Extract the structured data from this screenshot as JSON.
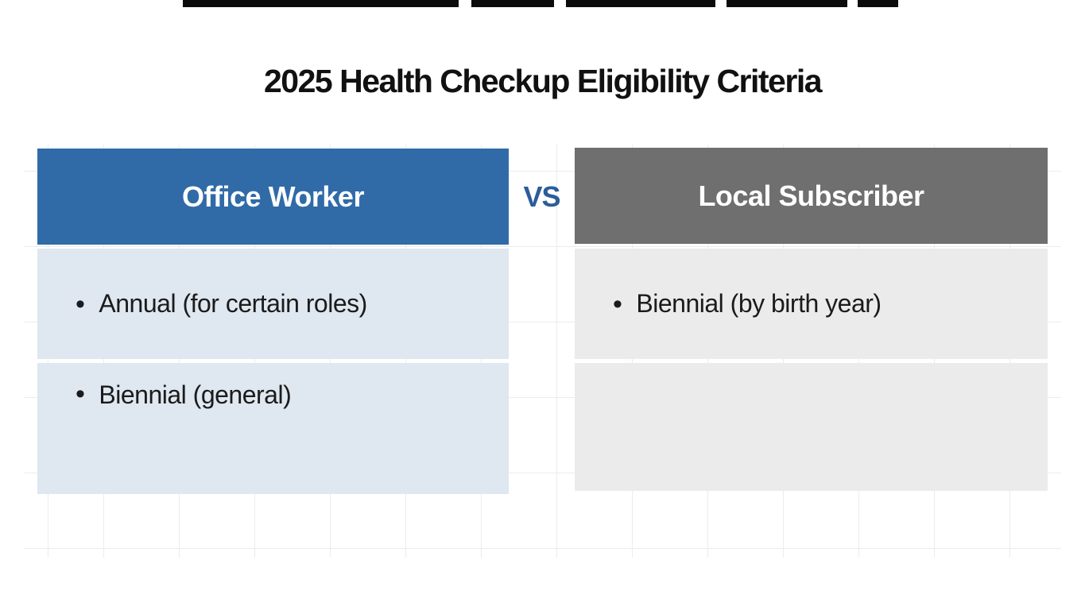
{
  "title": "2025 Health Checkup Eligibility Criteria",
  "vs_label": "VS",
  "bullet_char": "•",
  "columns": [
    {
      "id": "office-worker",
      "header": "Office Worker",
      "header_color": "#306ba8",
      "body_color": "#dfe7f0",
      "items": [
        "Annual (for certain roles)",
        "Biennial (general)"
      ]
    },
    {
      "id": "local-subscriber",
      "header": "Local Subscriber",
      "header_color": "#6f6f6f",
      "body_color": "#ebebeb",
      "items": [
        "Biennial (by birth year)"
      ]
    }
  ],
  "colors": {
    "title_text": "#111111",
    "vs_text": "#2b5d99",
    "bullet_text": "#1b1b1b",
    "grid_line": "#ececec",
    "top_fragments": "#0b0b0b",
    "page_background": "#ffffff"
  }
}
